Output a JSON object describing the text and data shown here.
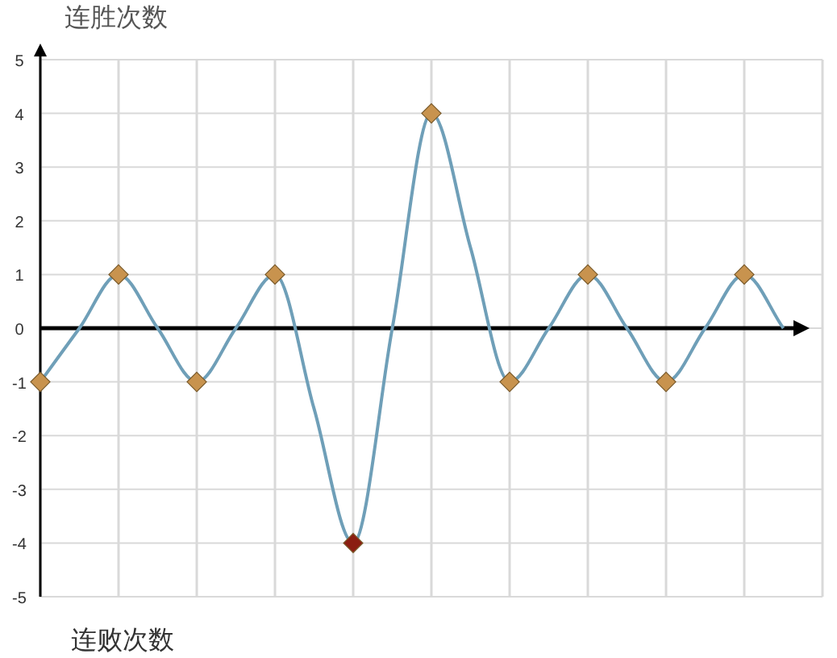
{
  "chart_data": {
    "type": "line",
    "ylabel": "连胜次数",
    "xlabel": "连败次数",
    "categories": [
      null,
      null,
      null,
      null,
      null,
      null,
      null,
      null,
      null,
      null,
      null,
      null,
      null,
      null,
      null,
      null,
      null,
      null,
      null,
      null
    ],
    "series": [
      {
        "color": "#6f9fb8",
        "marker": "diamond",
        "colors": [
          "#c8934e",
          null,
          "#c8934e",
          null,
          "#c8934e",
          null,
          "#c8934e",
          null,
          "#8b1e12",
          null,
          "#c8934e",
          null,
          "#c8934e",
          null,
          "#c8934e",
          null,
          "#c8934e",
          null,
          "#c8934e",
          null
        ],
        "values": [
          -1,
          0,
          1,
          0,
          -1,
          0,
          1,
          -1.5,
          -4,
          0,
          4,
          1.5,
          -1,
          0,
          1,
          0,
          -1,
          0,
          1,
          0
        ]
      }
    ],
    "ylim": [
      -5,
      5
    ],
    "yticks": [
      -5,
      -4,
      -3,
      -2,
      -1,
      0,
      1,
      2,
      3,
      4,
      5
    ],
    "grid": true,
    "tick_labels": "y"
  }
}
